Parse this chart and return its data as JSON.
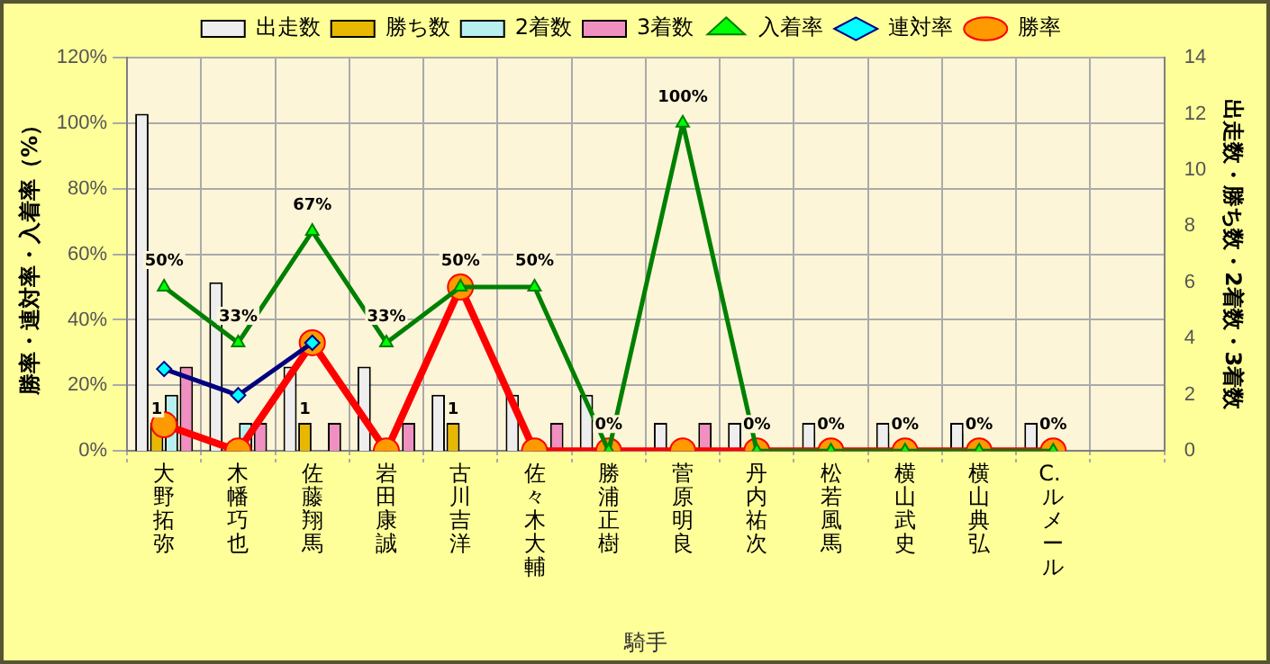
{
  "chart_data": {
    "type": "bar",
    "xlabel": "騎手",
    "ylabel": "勝率・連対率・入着率（%）",
    "y2label": "出走数・勝ち数・2着数・3着数",
    "categories": [
      "大野拓弥",
      "木幡巧也",
      "佐藤翔馬",
      "岩田康誠",
      "古川吉洋",
      "佐々木大輔",
      "勝浦正樹",
      "菅原明良",
      "丹内祐次",
      "松若風馬",
      "横山武史",
      "横山典弘",
      "C. ルメール",
      null
    ],
    "series": [
      {
        "name": "出走数",
        "axis": "y2",
        "color": "#eeeeee",
        "values": [
          12,
          6,
          3,
          3,
          2,
          2,
          2,
          1,
          1,
          1,
          1,
          1,
          1,
          null
        ]
      },
      {
        "name": "勝ち数",
        "axis": "y2",
        "color": "#e8b800",
        "values": [
          1,
          0,
          1,
          0,
          1,
          0,
          0,
          0,
          0,
          0,
          0,
          0,
          0,
          null
        ],
        "value_labels": [
          "1",
          null,
          "1",
          null,
          "1",
          null,
          null,
          null,
          null,
          null,
          null,
          null,
          null,
          null
        ]
      },
      {
        "name": "2着数",
        "axis": "y2",
        "color": "#b8f0f0",
        "values": [
          2,
          1,
          0,
          0,
          0,
          0,
          0,
          0,
          0,
          0,
          0,
          0,
          0,
          null
        ]
      },
      {
        "name": "3着数",
        "axis": "y2",
        "color": "#f090c0",
        "values": [
          3,
          1,
          1,
          1,
          0,
          1,
          0,
          1,
          0,
          0,
          0,
          0,
          0,
          null
        ]
      },
      {
        "name": "入着率",
        "type": "line",
        "color": "#008000",
        "marker": "triangle",
        "values": [
          50,
          33,
          67,
          33,
          50,
          50,
          0,
          100,
          0,
          0,
          0,
          0,
          0,
          null
        ],
        "value_labels": [
          "50%",
          "33%",
          "67%",
          "33%",
          "50%",
          "50%",
          "0%",
          "100%",
          "0%",
          "0%",
          "0%",
          "0%",
          "0%",
          null
        ]
      },
      {
        "name": "連対率",
        "type": "line",
        "color": "#000080",
        "marker": "diamond",
        "values": [
          25,
          17,
          33,
          null,
          null,
          null,
          null,
          null,
          null,
          null,
          null,
          null,
          null,
          null
        ]
      },
      {
        "name": "勝率",
        "type": "line",
        "color": "#ff0000",
        "marker": "circle",
        "values": [
          8,
          0,
          33,
          0,
          50,
          0,
          0,
          0,
          0,
          0,
          0,
          0,
          0,
          null
        ]
      }
    ],
    "ylim": [
      0,
      120
    ],
    "yticks": [
      {
        "value": 0,
        "label": "0%"
      },
      {
        "value": 20,
        "label": "20%"
      },
      {
        "value": 40,
        "label": "40%"
      },
      {
        "value": 60,
        "label": "60%"
      },
      {
        "value": 80,
        "label": "80%"
      },
      {
        "value": 100,
        "label": "100%"
      },
      {
        "value": 120,
        "label": "120%"
      }
    ],
    "y2lim": [
      0,
      14
    ],
    "y2ticks": [
      0,
      2,
      4,
      6,
      8,
      10,
      12,
      14
    ],
    "grid": true,
    "legend": "top",
    "line_style": "solid"
  }
}
